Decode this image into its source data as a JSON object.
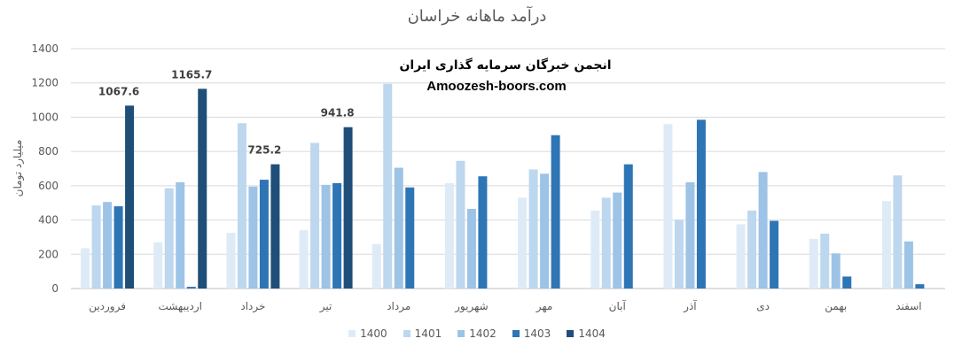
{
  "colors": {
    "1400": "#deebf7",
    "1401": "#bdd7ee",
    "1402": "#9dc3e6",
    "1403": "#2e75b6",
    "1404": "#1f4e79",
    "grid": "#d9d9d9",
    "text": "#595959"
  },
  "watermark": {
    "line1": "انجمن خبرگان سرمایه گذاری ایران",
    "line2": "Amoozesh-boors.com"
  },
  "chart_data": {
    "type": "bar",
    "title": "درآمد ماهانه خراسان",
    "ylabel": "میلیارد تومان",
    "xlabel": "",
    "ylim": [
      0,
      1400
    ],
    "yticks": [
      0,
      200,
      400,
      600,
      800,
      1000,
      1200,
      1400
    ],
    "grid": true,
    "legend_position": "bottom",
    "categories": [
      "فروردین",
      "اردیبهشت",
      "خرداد",
      "تیر",
      "مرداد",
      "شهریور",
      "مهر",
      "آبان",
      "آذر",
      "دی",
      "بهمن",
      "اسفند"
    ],
    "series": [
      {
        "name": "1400",
        "values": [
          235,
          270,
          325,
          340,
          260,
          615,
          530,
          455,
          960,
          375,
          290,
          510
        ]
      },
      {
        "name": "1401",
        "values": [
          485,
          585,
          965,
          850,
          1195,
          745,
          695,
          530,
          400,
          455,
          320,
          660
        ]
      },
      {
        "name": "1402",
        "values": [
          505,
          620,
          595,
          605,
          705,
          465,
          670,
          560,
          620,
          680,
          205,
          275
        ]
      },
      {
        "name": "1403",
        "values": [
          480,
          10,
          635,
          615,
          590,
          655,
          895,
          725,
          985,
          395,
          70,
          25
        ]
      },
      {
        "name": "1404",
        "values": [
          1067.6,
          1165.7,
          725.2,
          941.8,
          null,
          null,
          null,
          null,
          null,
          null,
          null,
          null
        ]
      }
    ],
    "data_labels": [
      {
        "series": "1404",
        "category_index": 0,
        "text": "1067.6"
      },
      {
        "series": "1404",
        "category_index": 1,
        "text": "1165.7"
      },
      {
        "series": "1404",
        "category_index": 2,
        "text": "725.2"
      },
      {
        "series": "1404",
        "category_index": 3,
        "text": "941.8"
      }
    ]
  }
}
